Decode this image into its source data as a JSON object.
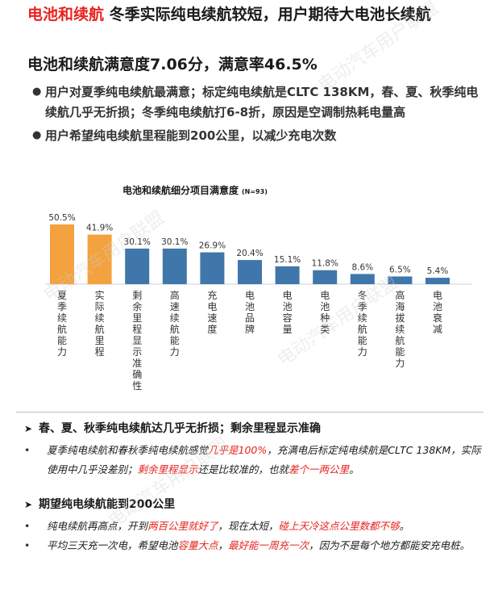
{
  "header": {
    "title_red": "电池和续航",
    "title_rest": " 冬季实际纯电续航较短，用户期待大电池长续航",
    "subtitle": "电池和续航满意度7.06分，满意率46.5%"
  },
  "bullets": [
    "用户对夏季纯电续航最满意；标定纯电续航是CLTC 138KM，春、夏、秋季纯电续航几乎无折损；冬季纯电续航打6-8折，原因是空调制热耗电量高",
    "用户希望纯电续航里程能到200公里，以减少充电次数"
  ],
  "watermark": "电动汽车用户联盟",
  "chart_data": {
    "type": "bar",
    "title": "电池和续航细分项目满意度",
    "note": "(N=93)",
    "categories": [
      "夏季续航能力",
      "实际续航里程",
      "剩余里程显示准确性",
      "高速续航能力",
      "充电速度",
      "电池品牌",
      "电池容量",
      "电池种类",
      "冬季续航能力",
      "高海拔续航能力",
      "电池衰减"
    ],
    "values": [
      50.5,
      41.9,
      30.1,
      30.1,
      26.9,
      20.4,
      15.1,
      11.8,
      8.6,
      6.5,
      5.4
    ],
    "labels": [
      "50.5%",
      "41.9%",
      "30.1%",
      "30.1%",
      "26.9%",
      "20.4%",
      "15.1%",
      "11.8%",
      "8.6%",
      "6.5%",
      "5.4%"
    ],
    "highlight_count": 2,
    "colors": {
      "highlight": "#f4a23f",
      "normal": "#3f77ab"
    },
    "ylim": [
      0,
      60
    ]
  },
  "section1": {
    "heading": "春、夏、秋季纯电续航达几乎无折损；剩余里程显示准确",
    "item": [
      {
        "t": "夏季纯电续航和春秋季纯电续航感觉",
        "red": false
      },
      {
        "t": "几乎是100%",
        "red": true
      },
      {
        "t": "，充满电后标定纯电续航是CLTC 138KM，实际使用中几乎没差别；",
        "red": false
      },
      {
        "t": "剩余里程显示",
        "red": true
      },
      {
        "t": "还是比较准的，也就",
        "red": false
      },
      {
        "t": "差个一两公里",
        "red": true
      },
      {
        "t": "。",
        "red": false
      }
    ]
  },
  "section2": {
    "heading": "期望纯电续航能到200公里",
    "item1": [
      {
        "t": "纯电续航再高点，开到",
        "red": false
      },
      {
        "t": "两百公里就好了",
        "red": true
      },
      {
        "t": "，现在太短，",
        "red": false
      },
      {
        "t": "碰上天冷这点公里数都不够",
        "red": true
      },
      {
        "t": "。",
        "red": false
      }
    ],
    "item2": [
      {
        "t": "平均三天充一次电，希望电池",
        "red": false
      },
      {
        "t": "容量大点",
        "red": true
      },
      {
        "t": "，",
        "red": false
      },
      {
        "t": "最好能一周充一次",
        "red": true
      },
      {
        "t": "，因为不是每个地方都能安充电桩。",
        "red": false
      }
    ]
  }
}
